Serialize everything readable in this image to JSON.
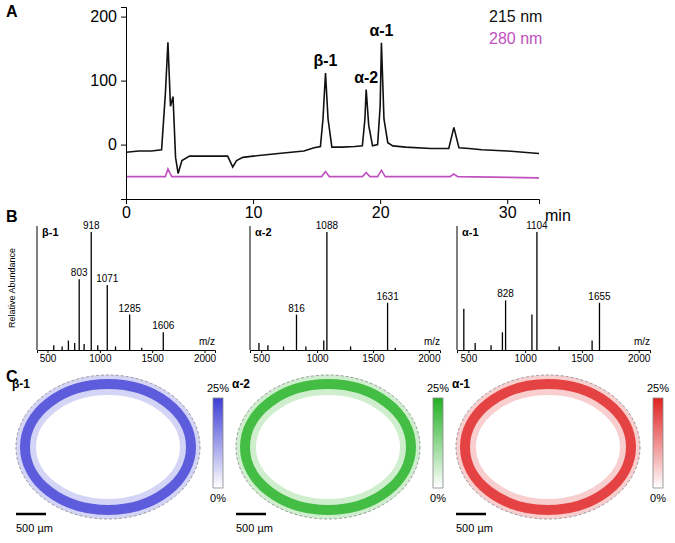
{
  "panel_labels": [
    "A",
    "B",
    "C"
  ],
  "chart_data": [
    {
      "type": "line",
      "x_label": "min",
      "xlim": [
        0,
        32.5
      ],
      "xticks": [
        0,
        10,
        20,
        30
      ],
      "ylim": [
        -85,
        215
      ],
      "yticks": [
        0,
        100,
        200
      ],
      "legend": "upper right",
      "series": [
        {
          "name": "215 nm",
          "color": "#111111",
          "x": [
            0,
            1,
            2,
            2.8,
            3.1,
            3.3,
            3.5,
            3.7,
            3.9,
            4.1,
            4.4,
            5,
            6,
            8,
            8.4,
            8.7,
            9.2,
            10,
            12,
            13,
            14,
            14.8,
            15.3,
            15.5,
            15.7,
            15.9,
            16.2,
            17,
            18,
            18.6,
            18.8,
            18.9,
            19.1,
            19.4,
            19.8,
            20.0,
            20.1,
            20.3,
            20.6,
            21,
            22,
            24,
            25.4,
            25.8,
            26.2,
            27,
            28,
            30,
            32.5
          ],
          "values": [
            -12,
            -10,
            -10,
            -8,
            80,
            160,
            60,
            75,
            -20,
            -45,
            -25,
            -18,
            -18,
            -18,
            -35,
            -25,
            -20,
            -18,
            -14,
            -12,
            -10,
            -5,
            -3,
            40,
            112,
            40,
            -4,
            -4,
            -3,
            -2,
            40,
            86,
            30,
            -2,
            0,
            60,
            159,
            40,
            3,
            -2,
            -4,
            -6,
            -6,
            27,
            -5,
            -6,
            -8,
            -10,
            -14
          ]
        },
        {
          "name": "280 nm",
          "color": "#c050c0",
          "x": [
            0,
            3.1,
            3.3,
            3.6,
            15.4,
            15.7,
            16.0,
            18.6,
            18.9,
            19.2,
            19.8,
            20.1,
            20.4,
            25.5,
            25.8,
            26.1,
            32.5
          ],
          "values": [
            -50,
            -50,
            -38,
            -50,
            -50,
            -42,
            -50,
            -50,
            -44,
            -50,
            -50,
            -40,
            -50,
            -50,
            -46,
            -50,
            -52
          ]
        }
      ],
      "annotations": [
        {
          "text": "β-1",
          "x": 15.7,
          "y": 112
        },
        {
          "text": "α-2",
          "x": 18.9,
          "y": 86
        },
        {
          "text": "α-1",
          "x": 20.1,
          "y": 159
        }
      ]
    },
    {
      "type": "bar",
      "title": "β-1",
      "x_label": "m/z",
      "y_label": "Relative Abundance",
      "color": "#000000",
      "x": [
        560,
        640,
        700,
        760,
        803,
        850,
        918,
        980,
        1071,
        1150,
        1285,
        1400,
        1606
      ],
      "values": [
        4,
        3,
        8,
        6,
        60,
        5,
        100,
        4,
        55,
        3,
        30,
        2,
        15
      ],
      "xlim": [
        400,
        2100
      ],
      "xticks": [
        500,
        1000,
        1500,
        2000
      ],
      "ylim": [
        0,
        105
      ],
      "tick_labels": "x",
      "annotations": [
        {
          "text": "803",
          "x": 803,
          "y": 60
        },
        {
          "text": "918",
          "x": 918,
          "y": 100
        },
        {
          "text": "1071",
          "x": 1071,
          "y": 55
        },
        {
          "text": "1285",
          "x": 1285,
          "y": 30
        },
        {
          "text": "1606",
          "x": 1606,
          "y": 15
        }
      ]
    },
    {
      "type": "bar",
      "title": "α-2",
      "x_label": "m/z",
      "color": "#000000",
      "x": [
        480,
        560,
        700,
        816,
        900,
        1060,
        1088,
        1300,
        1631,
        1700
      ],
      "values": [
        6,
        4,
        3,
        30,
        3,
        8,
        100,
        3,
        40,
        2
      ],
      "xlim": [
        400,
        2100
      ],
      "xticks": [
        500,
        1000,
        1500,
        2000
      ],
      "ylim": [
        0,
        105
      ],
      "tick_labels": "x",
      "annotations": [
        {
          "text": "816",
          "x": 816,
          "y": 30
        },
        {
          "text": "1088",
          "x": 1088,
          "y": 100
        },
        {
          "text": "1631",
          "x": 1631,
          "y": 40
        }
      ]
    },
    {
      "type": "bar",
      "title": "α-1",
      "x_label": "m/z",
      "color": "#000000",
      "x": [
        460,
        560,
        700,
        800,
        828,
        1060,
        1104,
        1300,
        1590,
        1655
      ],
      "values": [
        35,
        6,
        4,
        15,
        42,
        30,
        100,
        3,
        8,
        40
      ],
      "xlim": [
        400,
        2100
      ],
      "xticks": [
        500,
        1000,
        1500,
        2000
      ],
      "ylim": [
        0,
        105
      ],
      "tick_labels": "x",
      "annotations": [
        {
          "text": "828",
          "x": 828,
          "y": 42
        },
        {
          "text": "1104",
          "x": 1104,
          "y": 100
        },
        {
          "text": "1655",
          "x": 1655,
          "y": 40
        }
      ]
    },
    {
      "type": "image",
      "title": "β-1",
      "color": "#3d3dd6",
      "scale_bar": "500 µm",
      "colorbar": {
        "range": [
          0,
          25
        ],
        "ticks": [
          {
            "value": 25,
            "label": "25%"
          },
          {
            "value": 0,
            "label": "0%"
          }
        ]
      }
    },
    {
      "type": "image",
      "title": "α-2",
      "color": "#22b022",
      "scale_bar": "500 µm",
      "colorbar": {
        "range": [
          0,
          25
        ],
        "ticks": [
          {
            "value": 25,
            "label": "25%"
          },
          {
            "value": 0,
            "label": "0%"
          }
        ]
      }
    },
    {
      "type": "image",
      "title": "α-1",
      "color": "#e02020",
      "scale_bar": "500 µm",
      "colorbar": {
        "range": [
          0,
          25
        ],
        "ticks": [
          {
            "value": 25,
            "label": "25%"
          },
          {
            "value": 0,
            "label": "0%"
          }
        ]
      }
    }
  ]
}
